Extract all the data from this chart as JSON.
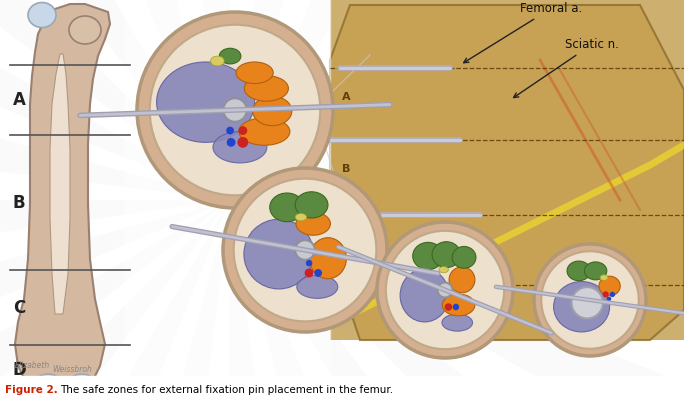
{
  "caption_bold": "Figure 2.",
  "caption_text": " The safe zones for external fixation pin placement in the femur.",
  "caption_color": "#cc2200",
  "caption_text_color": "#000000",
  "bg_color": "#ffffff",
  "femur_outer_color": "#d4b8a0",
  "femur_inner_color": "#ede0d0",
  "femur_bone_color": "#e8ddd0",
  "zone_labels": [
    "A",
    "B",
    "C",
    "D"
  ],
  "zone_label_color": "#222222",
  "label_femoral": "Femoral a.",
  "label_sciatic": "Sciatic n.",
  "purple_color": "#8888bb",
  "orange_color": "#e8821a",
  "green_color": "#5a8a40",
  "yellow_color": "#d8cc60",
  "green_dark": "#4a7a30",
  "bone_gray": "#c8c8cc",
  "rod_color": "#a8a8b2",
  "cross_section_outer": "#d4b090",
  "cross_section_inner": "#ede0cc",
  "red_vessel": "#cc2222",
  "blue_vessel": "#2244cc",
  "photo_bg": "#c8a860"
}
